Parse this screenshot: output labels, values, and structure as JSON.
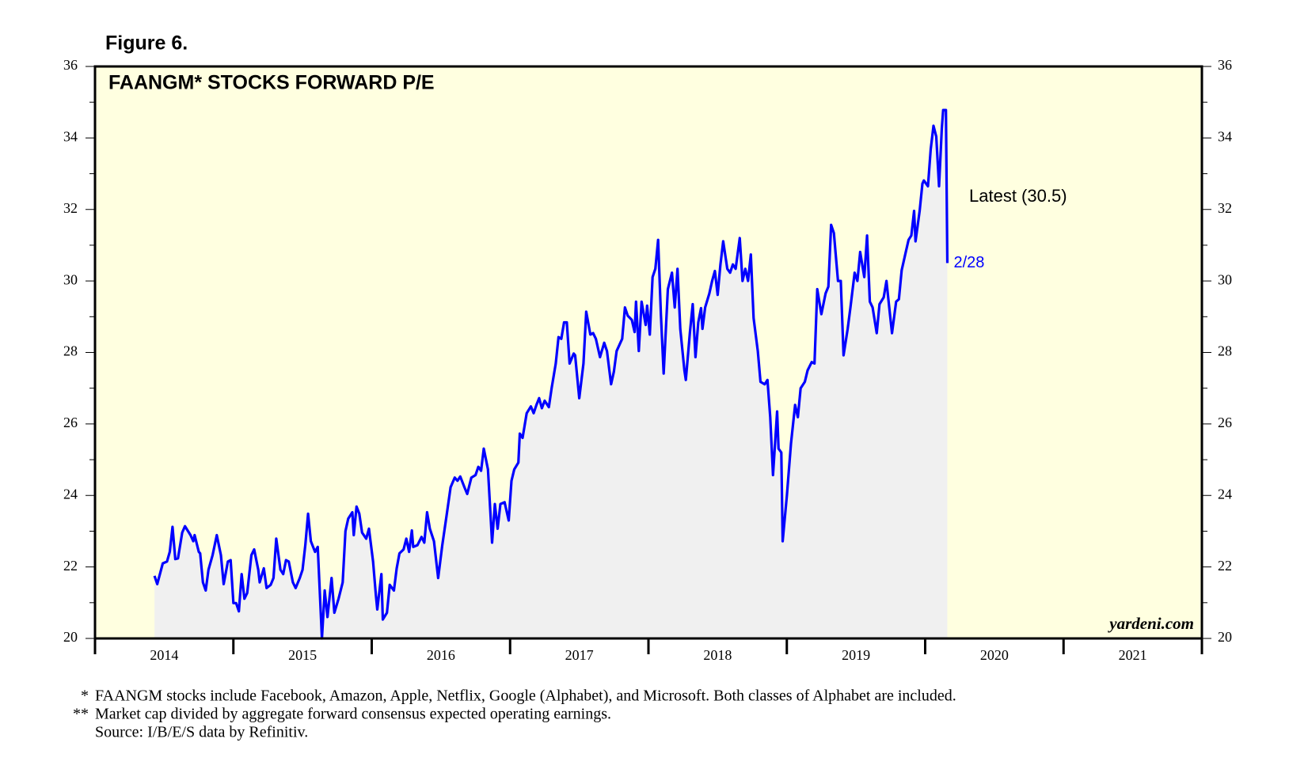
{
  "figure_label": "Figure 6.",
  "footnotes": [
    {
      "marker": "*",
      "text": "FAANGM stocks include Facebook, Amazon, Apple, Netflix, Google (Alphabet), and Microsoft. Both classes of Alphabet are included."
    },
    {
      "marker": "**",
      "text": "Market cap divided by aggregate forward consensus expected operating earnings."
    },
    {
      "text": "Source: I/B/E/S data by Refinitiv."
    }
  ],
  "chart_data": {
    "type": "area-line",
    "title": "FAANGM* STOCKS FORWARD P/E",
    "annotation": "Latest (30.5)",
    "date_label": "2/28",
    "watermark": "yardeni.com",
    "color": "#0000ff",
    "fill_color": "#f0f0f0",
    "background": "#ffffe0",
    "xlim": [
      2014,
      2022
    ],
    "xticks": [
      2014,
      2015,
      2016,
      2017,
      2018,
      2019,
      2020,
      2021
    ],
    "ylim": [
      20,
      36
    ],
    "yticks": [
      20,
      22,
      24,
      26,
      28,
      30,
      32,
      34,
      36
    ],
    "right_axis": true,
    "x": [
      2014.43,
      2014.45,
      2014.49,
      2014.52,
      2014.54,
      2014.56,
      2014.58,
      2014.6,
      2014.63,
      2014.65,
      2014.69,
      2014.71,
      2014.72,
      2014.75,
      2014.76,
      2014.78,
      2014.8,
      2014.82,
      2014.85,
      2014.88,
      2014.91,
      2014.93,
      2014.96,
      2014.98,
      2015,
      2015.02,
      2015.04,
      2015.06,
      2015.08,
      2015.1,
      2015.13,
      2015.15,
      2015.18,
      2015.19,
      2015.22,
      2015.24,
      2015.27,
      2015.29,
      2015.31,
      2015.34,
      2015.36,
      2015.38,
      2015.4,
      2015.43,
      2015.45,
      2015.48,
      2015.5,
      2015.52,
      2015.54,
      2015.56,
      2015.59,
      2015.61,
      2015.64,
      2015.66,
      2015.68,
      2015.71,
      2015.73,
      2015.76,
      2015.79,
      2015.81,
      2015.83,
      2015.86,
      2015.87,
      2015.89,
      2015.91,
      2015.93,
      2015.96,
      2015.98,
      2016.01,
      2016.03,
      2016.04,
      2016.07,
      2016.08,
      2016.11,
      2016.13,
      2016.16,
      2016.18,
      2016.2,
      2016.23,
      2016.25,
      2016.27,
      2016.29,
      2016.3,
      2016.33,
      2016.36,
      2016.38,
      2016.4,
      2016.42,
      2016.45,
      2016.48,
      2016.51,
      2016.54,
      2016.57,
      2016.6,
      2016.62,
      2016.64,
      2016.67,
      2016.69,
      2016.72,
      2016.75,
      2016.77,
      2016.79,
      2016.81,
      2016.84,
      2016.87,
      2016.89,
      2016.91,
      2016.93,
      2016.96,
      2016.99,
      2017.01,
      2017.03,
      2017.06,
      2017.07,
      2017.09,
      2017.12,
      2017.15,
      2017.17,
      2017.19,
      2017.21,
      2017.23,
      2017.25,
      2017.28,
      2017.3,
      2017.33,
      2017.35,
      2017.37,
      2017.39,
      2017.41,
      2017.43,
      2017.46,
      2017.47,
      2017.5,
      2017.53,
      2017.55,
      2017.58,
      2017.6,
      2017.62,
      2017.65,
      2017.68,
      2017.7,
      2017.73,
      2017.75,
      2017.77,
      2017.81,
      2017.83,
      2017.85,
      2017.88,
      2017.9,
      2017.91,
      2017.93,
      2017.95,
      2017.98,
      2017.99,
      2018.01,
      2018.03,
      2018.05,
      2018.07,
      2018.09,
      2018.11,
      2018.14,
      2018.17,
      2018.19,
      2018.21,
      2018.23,
      2018.26,
      2018.27,
      2018.3,
      2018.32,
      2018.34,
      2018.36,
      2018.38,
      2018.39,
      2018.41,
      2018.44,
      2018.46,
      2018.48,
      2018.5,
      2018.52,
      2018.54,
      2018.57,
      2018.59,
      2018.61,
      2018.63,
      2018.66,
      2018.68,
      2018.7,
      2018.72,
      2018.74,
      2018.76,
      2018.79,
      2018.81,
      2018.84,
      2018.86,
      2018.88,
      2018.9,
      2018.93,
      2018.94,
      2018.96,
      2018.97,
      2019,
      2019.03,
      2019.06,
      2019.08,
      2019.1,
      2019.13,
      2019.15,
      2019.18,
      2019.2,
      2019.22,
      2019.25,
      2019.28,
      2019.3,
      2019.32,
      2019.34,
      2019.37,
      2019.39,
      2019.41,
      2019.44,
      2019.46,
      2019.49,
      2019.51,
      2019.53,
      2019.56,
      2019.58,
      2019.6,
      2019.62,
      2019.65,
      2019.67,
      2019.7,
      2019.72,
      2019.74,
      2019.76,
      2019.79,
      2019.81,
      2019.83,
      2019.86,
      2019.88,
      2019.9,
      2019.92,
      2019.93,
      2019.96,
      2019.98,
      2019.99,
      2020.02,
      2020.04,
      2020.06,
      2020.08,
      2020.1,
      2020.12,
      2020.13,
      2020.15,
      2020.16
    ],
    "values": [
      21.75,
      21.52,
      22.1,
      22.15,
      22.42,
      23.12,
      22.22,
      22.24,
      22.96,
      23.14,
      22.89,
      22.72,
      22.89,
      22.42,
      22.38,
      21.57,
      21.34,
      21.92,
      22.33,
      22.89,
      22.33,
      21.52,
      22.15,
      22.19,
      20.99,
      20.99,
      20.76,
      21.8,
      21.11,
      21.27,
      22.33,
      22.49,
      21.92,
      21.57,
      21.96,
      21.41,
      21.5,
      21.69,
      22.79,
      21.92,
      21.8,
      22.19,
      22.15,
      21.57,
      21.41,
      21.69,
      21.92,
      22.61,
      23.49,
      22.72,
      22.42,
      22.56,
      20,
      21.34,
      20.6,
      21.69,
      20.72,
      21.11,
      21.57,
      23,
      23.35,
      23.53,
      22.89,
      23.69,
      23.49,
      22.96,
      22.79,
      23.07,
      22.15,
      21.22,
      20.81,
      21.8,
      20.53,
      20.72,
      21.5,
      21.34,
      21.96,
      22.38,
      22.49,
      22.79,
      22.42,
      23.02,
      22.56,
      22.61,
      22.84,
      22.68,
      23.53,
      23.07,
      22.72,
      21.69,
      22.61,
      23.42,
      24.23,
      24.5,
      24.41,
      24.53,
      24.23,
      24.04,
      24.5,
      24.57,
      24.8,
      24.69,
      25.31,
      24.73,
      22.68,
      23.76,
      23.07,
      23.76,
      23.81,
      23.3,
      24.41,
      24.73,
      24.92,
      25.73,
      25.61,
      26.3,
      26.49,
      26.3,
      26.53,
      26.72,
      26.44,
      26.65,
      26.47,
      27,
      27.69,
      28.43,
      28.38,
      28.84,
      28.84,
      27.69,
      27.97,
      27.92,
      26.72,
      27.69,
      29.14,
      28.5,
      28.54,
      28.38,
      27.87,
      28.27,
      28.04,
      27.11,
      27.46,
      28.04,
      28.38,
      29.26,
      29.03,
      28.91,
      28.57,
      29.42,
      28.04,
      29.42,
      28.77,
      29.31,
      28.5,
      30.11,
      30.34,
      31.15,
      29.07,
      27.41,
      29.77,
      30.23,
      29.26,
      30.34,
      28.66,
      27.5,
      27.23,
      28.57,
      29.35,
      27.87,
      28.84,
      29.24,
      28.66,
      29.26,
      29.65,
      30,
      30.28,
      29.61,
      30.46,
      31.11,
      30.34,
      30.23,
      30.46,
      30.34,
      31.2,
      30,
      30.34,
      30,
      30.74,
      28.96,
      28.04,
      27.18,
      27.11,
      27.23,
      26.19,
      24.57,
      26.35,
      25.31,
      25.2,
      22.72,
      23.99,
      25.45,
      26.53,
      26.19,
      27,
      27.18,
      27.5,
      27.73,
      27.69,
      29.77,
      29.07,
      29.65,
      29.84,
      31.57,
      31.34,
      30,
      30,
      27.92,
      28.66,
      29.26,
      30.23,
      30,
      30.81,
      30.11,
      31.27,
      29.42,
      29.26,
      28.54,
      29.35,
      29.54,
      30,
      29.26,
      28.54,
      29.42,
      29.49,
      30.3,
      30.81,
      31.15,
      31.27,
      31.96,
      31.11,
      31.96,
      32.72,
      32.81,
      32.65,
      33.69,
      34.34,
      34.04,
      32.65,
      34.27,
      34.78,
      34.78,
      30.5
    ]
  }
}
